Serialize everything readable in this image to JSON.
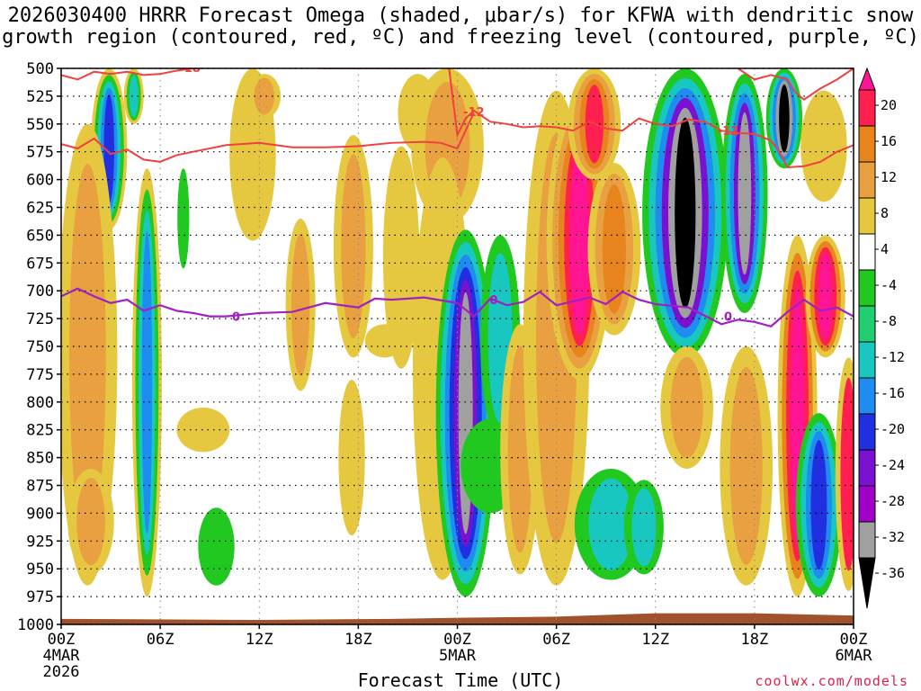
{
  "title_line1": "2026030400 HRRR Forecast Omega (shaded, μbar/s) for KFWA with dendritic snow",
  "title_line2": "growth region (contoured, red, ºC) and freezing level (contoured, purple, ºC)",
  "credit": "coolwx.com/models",
  "chart_data": {
    "type": "heatmap",
    "xlabel": "Forecast Time (UTC)",
    "ylabel": "",
    "xlim": [
      0,
      48
    ],
    "ylim": [
      1000,
      500
    ],
    "y_ticks": [
      500,
      525,
      550,
      575,
      600,
      625,
      650,
      675,
      700,
      725,
      750,
      775,
      800,
      825,
      850,
      875,
      900,
      925,
      950,
      975,
      1000
    ],
    "x_ticks": [
      {
        "hour": 0,
        "label": "00Z",
        "sub1": "4MAR",
        "sub2": "2026"
      },
      {
        "hour": 6,
        "label": "06Z",
        "sub1": "",
        "sub2": ""
      },
      {
        "hour": 12,
        "label": "12Z",
        "sub1": "",
        "sub2": ""
      },
      {
        "hour": 18,
        "label": "18Z",
        "sub1": "",
        "sub2": ""
      },
      {
        "hour": 24,
        "label": "00Z",
        "sub1": "5MAR",
        "sub2": ""
      },
      {
        "hour": 30,
        "label": "06Z",
        "sub1": "",
        "sub2": ""
      },
      {
        "hour": 36,
        "label": "12Z",
        "sub1": "",
        "sub2": ""
      },
      {
        "hour": 42,
        "label": "18Z",
        "sub1": "",
        "sub2": ""
      },
      {
        "hour": 48,
        "label": "00Z",
        "sub1": "6MAR",
        "sub2": ""
      }
    ],
    "colorbar": {
      "labels": [
        "20",
        "16",
        "12",
        "8",
        "4",
        "-4",
        "-8",
        "-12",
        "-16",
        "-20",
        "-24",
        "-28",
        "-32",
        "-36"
      ],
      "colors": [
        "#ff2050",
        "#e8841e",
        "#e8a040",
        "#e6c840",
        "#ffffff",
        "#20c820",
        "#20d070",
        "#18c8c0",
        "#1e8cf0",
        "#2030e0",
        "#7a10d0",
        "#a000c8",
        "#a0a0a0",
        "#000000"
      ],
      "top_color": "#ff1493"
    },
    "contours": [
      {
        "name": "dgz_top",
        "label": "-18",
        "color": "#f04040",
        "points": [
          [
            0,
            506
          ],
          [
            1,
            510
          ],
          [
            2,
            503
          ],
          [
            3,
            505
          ],
          [
            4,
            503
          ],
          [
            5,
            506
          ],
          [
            6,
            505
          ],
          [
            7,
            502
          ],
          [
            8,
            500
          ],
          [
            10,
            499
          ],
          [
            12,
            497
          ],
          [
            16,
            500
          ],
          [
            20,
            500
          ],
          [
            22,
            500
          ],
          [
            24,
            498
          ]
        ]
      },
      {
        "name": "dgz_mid",
        "label": "-12",
        "color": "#f04040",
        "points": [
          [
            23.5,
            500
          ],
          [
            24,
            560
          ],
          [
            24.5,
            545
          ],
          [
            25,
            538
          ],
          [
            26,
            548
          ],
          [
            27,
            550
          ],
          [
            28,
            553
          ],
          [
            29,
            552
          ],
          [
            30,
            553
          ],
          [
            31,
            556
          ],
          [
            32,
            548
          ],
          [
            33,
            554
          ],
          [
            34,
            556
          ],
          [
            35,
            545
          ],
          [
            36,
            550
          ],
          [
            37,
            552
          ],
          [
            38,
            546
          ],
          [
            39,
            548
          ],
          [
            40,
            556
          ],
          [
            41,
            558
          ],
          [
            42,
            559
          ],
          [
            43,
            565
          ],
          [
            43.5,
            575
          ],
          [
            44,
            589
          ],
          [
            45,
            588
          ],
          [
            46,
            584
          ],
          [
            47,
            575
          ],
          [
            48,
            569
          ]
        ]
      },
      {
        "name": "dgz_right_top",
        "label": "",
        "color": "#f04040",
        "points": [
          [
            41,
            500
          ],
          [
            42,
            510
          ],
          [
            43,
            506
          ],
          [
            44,
            510
          ],
          [
            44.5,
            522
          ],
          [
            45,
            528
          ],
          [
            46,
            518
          ],
          [
            47,
            510
          ],
          [
            48,
            500
          ]
        ]
      },
      {
        "name": "dgz_bottom",
        "label": "-12",
        "color": "#f04040",
        "points": [
          [
            0,
            568
          ],
          [
            1,
            572
          ],
          [
            2,
            563
          ],
          [
            3,
            577
          ],
          [
            4,
            573
          ],
          [
            5,
            582
          ],
          [
            6,
            584
          ],
          [
            7,
            578
          ],
          [
            8,
            575
          ],
          [
            10,
            569
          ],
          [
            12,
            567
          ],
          [
            14,
            571
          ],
          [
            16,
            571
          ],
          [
            18,
            570
          ],
          [
            20,
            567
          ],
          [
            22,
            566
          ],
          [
            23,
            567
          ],
          [
            24,
            572
          ],
          [
            24.5,
            556
          ],
          [
            25,
            540
          ]
        ]
      },
      {
        "name": "freezing_level",
        "label": "0",
        "color": "#a020c0",
        "points": [
          [
            0,
            705
          ],
          [
            1,
            698
          ],
          [
            2,
            705
          ],
          [
            3,
            711
          ],
          [
            4,
            708
          ],
          [
            5,
            718
          ],
          [
            6,
            713
          ],
          [
            7,
            718
          ],
          [
            8,
            720
          ],
          [
            9,
            723
          ],
          [
            10,
            723
          ],
          [
            12,
            720
          ],
          [
            14,
            719
          ],
          [
            16,
            711
          ],
          [
            18,
            715
          ],
          [
            19,
            707
          ],
          [
            20,
            708
          ],
          [
            22,
            706
          ],
          [
            24,
            711
          ],
          [
            25,
            723
          ],
          [
            26,
            707
          ],
          [
            27,
            713
          ],
          [
            28,
            710
          ],
          [
            29,
            701
          ],
          [
            30,
            713
          ],
          [
            32,
            706
          ],
          [
            33,
            712
          ],
          [
            34,
            701
          ],
          [
            35,
            708
          ],
          [
            36,
            712
          ],
          [
            38,
            715
          ],
          [
            40,
            730
          ],
          [
            41,
            726
          ],
          [
            42,
            728
          ],
          [
            43,
            732
          ],
          [
            44,
            719
          ],
          [
            45,
            708
          ],
          [
            46,
            718
          ],
          [
            47,
            715
          ],
          [
            48,
            723
          ]
        ]
      }
    ],
    "cells": [
      {
        "hour": 2.9,
        "p_top": 500,
        "p_bot": 645,
        "sx": 0.55,
        "rings": [
          "#e6c840",
          "#20c820",
          "#18c8c0",
          "#1e8cf0",
          "#2030e0"
        ]
      },
      {
        "hour": 4.4,
        "p_top": 500,
        "p_bot": 550,
        "sx": 0.3,
        "rings": [
          "#e6c840",
          "#20c820",
          "#18c8c0"
        ]
      },
      {
        "hour": 5.2,
        "p_top": 590,
        "p_bot": 975,
        "sx": 0.45,
        "rings": [
          "#e6c840",
          "#20c820",
          "#18c8c0",
          "#1e8cf0"
        ]
      },
      {
        "hour": 1.6,
        "p_top": 550,
        "p_bot": 965,
        "sx": 0.9,
        "rings": [
          "#e6c840",
          "#e8a040"
        ]
      },
      {
        "hour": 1.8,
        "p_top": 860,
        "p_bot": 955,
        "sx": 0.7,
        "rings": [
          "#e6c840",
          "#e8a040"
        ]
      },
      {
        "hour": 7.4,
        "p_top": 590,
        "p_bot": 680,
        "sx": 0.18,
        "rings": [
          "#20c820"
        ]
      },
      {
        "hour": 9.4,
        "p_top": 895,
        "p_bot": 965,
        "sx": 0.55,
        "rings": [
          "#20c820"
        ]
      },
      {
        "hour": 8.6,
        "p_top": 805,
        "p_bot": 845,
        "sx": 0.8,
        "rings": [
          "#e6c840"
        ]
      },
      {
        "hour": 11.6,
        "p_top": 500,
        "p_bot": 655,
        "sx": 0.7,
        "rings": [
          "#e6c840"
        ]
      },
      {
        "hour": 12.3,
        "p_top": 505,
        "p_bot": 545,
        "sx": 0.5,
        "rings": [
          "#e6c840",
          "#e8a040"
        ]
      },
      {
        "hour": 14.5,
        "p_top": 635,
        "p_bot": 790,
        "sx": 0.45,
        "rings": [
          "#e6c840",
          "#e8a040"
        ]
      },
      {
        "hour": 17.7,
        "p_top": 560,
        "p_bot": 760,
        "sx": 0.6,
        "rings": [
          "#e6c840",
          "#e8a040"
        ]
      },
      {
        "hour": 17.6,
        "p_top": 780,
        "p_bot": 920,
        "sx": 0.4,
        "rings": [
          "#e6c840"
        ]
      },
      {
        "hour": 20.6,
        "p_top": 570,
        "p_bot": 770,
        "sx": 0.55,
        "rings": [
          "#e6c840"
        ]
      },
      {
        "hour": 21.6,
        "p_top": 505,
        "p_bot": 575,
        "sx": 0.6,
        "rings": [
          "#e6c840"
        ]
      },
      {
        "hour": 19.6,
        "p_top": 730,
        "p_bot": 760,
        "sx": 0.6,
        "rings": [
          "#e6c840"
        ]
      },
      {
        "hour": 23.4,
        "p_top": 500,
        "p_bot": 640,
        "sx": 1.1,
        "rings": [
          "#e6c840",
          "#e8a040"
        ]
      },
      {
        "hour": 23.1,
        "p_top": 580,
        "p_bot": 960,
        "sx": 0.9,
        "rings": [
          "#e6c840"
        ]
      },
      {
        "hour": 24.5,
        "p_top": 645,
        "p_bot": 975,
        "sx": 0.9,
        "rings": [
          "#20c820",
          "#18c8c0",
          "#1e8cf0",
          "#2030e0",
          "#7a10d0",
          "#a0a0a0"
        ]
      },
      {
        "hour": 26.0,
        "p_top": 815,
        "p_bot": 900,
        "sx": 0.9,
        "rings": [
          "#20c820"
        ]
      },
      {
        "hour": 26.6,
        "p_top": 650,
        "p_bot": 835,
        "sx": 0.6,
        "rings": [
          "#20c820",
          "#18c8c0"
        ]
      },
      {
        "hour": 27.8,
        "p_top": 730,
        "p_bot": 955,
        "sx": 0.6,
        "rings": [
          "#e6c840",
          "#e8a040"
        ]
      },
      {
        "hour": 30.0,
        "p_top": 520,
        "p_bot": 965,
        "sx": 1.0,
        "rings": [
          "#e6c840",
          "#e8a040"
        ]
      },
      {
        "hour": 31.4,
        "p_top": 530,
        "p_bot": 780,
        "sx": 1.0,
        "rings": [
          "#e6c840",
          "#e8a040",
          "#e8841e",
          "#ff2050",
          "#ff1493"
        ]
      },
      {
        "hour": 32.3,
        "p_top": 500,
        "p_bot": 600,
        "sx": 0.8,
        "rings": [
          "#e6c840",
          "#e8a040",
          "#e8841e",
          "#ff2050"
        ]
      },
      {
        "hour": 33.5,
        "p_top": 585,
        "p_bot": 740,
        "sx": 0.8,
        "rings": [
          "#e6c840",
          "#e8a040",
          "#e8841e"
        ]
      },
      {
        "hour": 33.3,
        "p_top": 860,
        "p_bot": 960,
        "sx": 1.1,
        "rings": [
          "#20c820",
          "#18c8c0"
        ]
      },
      {
        "hour": 35.3,
        "p_top": 870,
        "p_bot": 955,
        "sx": 0.6,
        "rings": [
          "#20c820",
          "#18c8c0"
        ]
      },
      {
        "hour": 37.8,
        "p_top": 500,
        "p_bot": 760,
        "sx": 1.3,
        "rings": [
          "#20c820",
          "#18c8c0",
          "#1e8cf0",
          "#7a10d0",
          "#a0a0a0",
          "#000000"
        ]
      },
      {
        "hour": 41.4,
        "p_top": 505,
        "p_bot": 720,
        "sx": 0.7,
        "rings": [
          "#20c820",
          "#18c8c0",
          "#1e8cf0",
          "#7a10d0",
          "#a0a0a0"
        ]
      },
      {
        "hour": 37.9,
        "p_top": 750,
        "p_bot": 860,
        "sx": 0.8,
        "rings": [
          "#e6c840",
          "#e8a040"
        ]
      },
      {
        "hour": 41.5,
        "p_top": 750,
        "p_bot": 965,
        "sx": 0.8,
        "rings": [
          "#e6c840",
          "#e8a040"
        ]
      },
      {
        "hour": 43.8,
        "p_top": 500,
        "p_bot": 590,
        "sx": 0.55,
        "rings": [
          "#20c820",
          "#18c8c0",
          "#1e8cf0",
          "#a0a0a0",
          "#000000"
        ]
      },
      {
        "hour": 44.6,
        "p_top": 650,
        "p_bot": 975,
        "sx": 0.6,
        "rings": [
          "#e6c840",
          "#e8841e",
          "#ff2050",
          "#ff1493"
        ]
      },
      {
        "hour": 46.3,
        "p_top": 650,
        "p_bot": 760,
        "sx": 0.6,
        "rings": [
          "#e6c840",
          "#e8841e",
          "#ff2050",
          "#ff1493"
        ]
      },
      {
        "hour": 45.9,
        "p_top": 810,
        "p_bot": 975,
        "sx": 0.7,
        "rings": [
          "#20c820",
          "#18c8c0",
          "#1e8cf0",
          "#2030e0"
        ]
      },
      {
        "hour": 46.2,
        "p_top": 520,
        "p_bot": 620,
        "sx": 0.7,
        "rings": [
          "#e6c840"
        ]
      },
      {
        "hour": 47.7,
        "p_top": 760,
        "p_bot": 970,
        "sx": 0.4,
        "rings": [
          "#e6c840",
          "#ff2050"
        ]
      }
    ],
    "ground_pressure": [
      [
        0,
        995
      ],
      [
        12,
        996
      ],
      [
        20,
        995
      ],
      [
        24,
        994
      ],
      [
        30,
        993
      ],
      [
        36,
        990
      ],
      [
        42,
        990
      ],
      [
        48,
        992
      ]
    ]
  }
}
